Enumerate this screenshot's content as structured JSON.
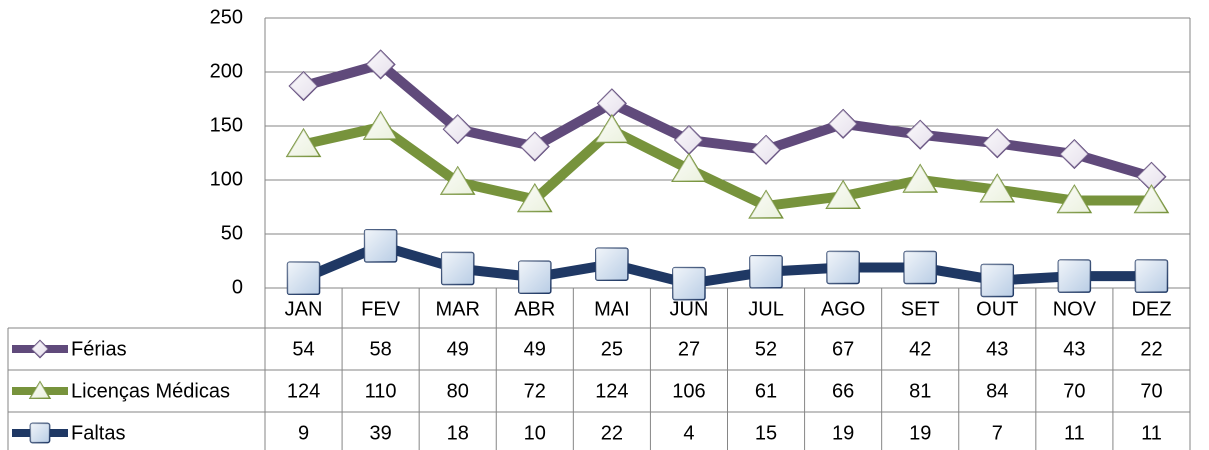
{
  "chart_data": {
    "type": "line",
    "stacked": true,
    "categories": [
      "JAN",
      "FEV",
      "MAR",
      "ABR",
      "MAI",
      "JUN",
      "JUL",
      "AGO",
      "SET",
      "OUT",
      "NOV",
      "DEZ"
    ],
    "series": [
      {
        "name": "Férias",
        "color": "#604a7b",
        "marker": "diamond",
        "marker_color": "#e6e0ec",
        "values": [
          54,
          58,
          49,
          49,
          25,
          27,
          52,
          67,
          42,
          43,
          43,
          22
        ]
      },
      {
        "name": "Licenças Médicas",
        "color": "#77933c",
        "marker": "triangle",
        "marker_color": "#ebf1de",
        "values": [
          124,
          110,
          80,
          72,
          124,
          106,
          61,
          66,
          81,
          84,
          70,
          70
        ]
      },
      {
        "name": "Faltas",
        "color": "#1f3864",
        "marker": "square",
        "marker_color": "#b9cde5",
        "values": [
          9,
          39,
          18,
          10,
          22,
          4,
          15,
          19,
          19,
          7,
          11,
          11
        ]
      }
    ],
    "ylim": [
      0,
      250
    ],
    "yticks": [
      0,
      50,
      100,
      150,
      200,
      250
    ],
    "grid": true,
    "data_table": true
  }
}
